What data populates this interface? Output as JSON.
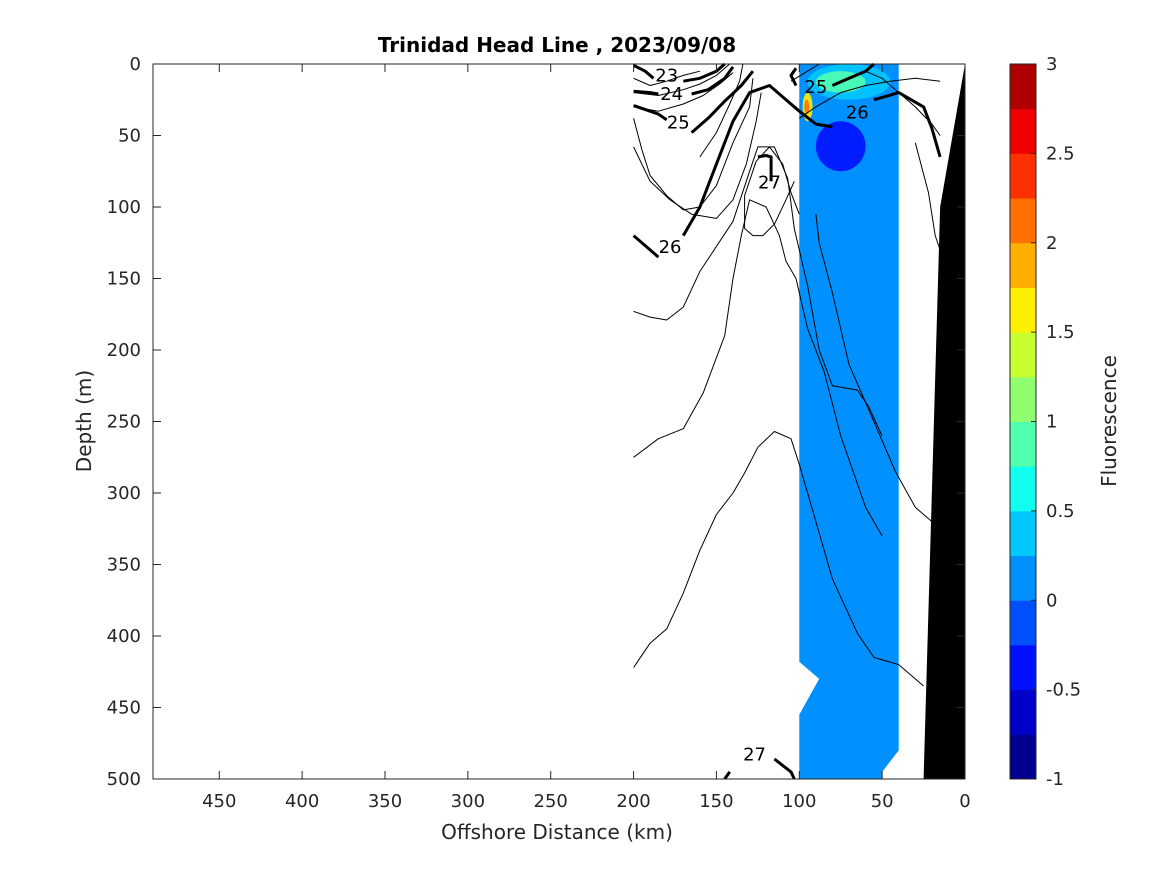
{
  "chart_data": {
    "type": "heatmap",
    "title": "Trinidad Head Line , 2023/09/08",
    "xlabel": "Offshore Distance (km)",
    "ylabel": "Depth (m)",
    "colorbar_label": "Fluorescence",
    "xlim": [
      490,
      0
    ],
    "ylim": [
      500,
      0
    ],
    "x_reversed": true,
    "y_reversed": true,
    "xticks": [
      450,
      400,
      350,
      300,
      250,
      200,
      150,
      100,
      50,
      0
    ],
    "yticks": [
      0,
      50,
      100,
      150,
      200,
      250,
      300,
      350,
      400,
      450,
      500
    ],
    "colorbar": {
      "range": [
        -1,
        3
      ],
      "ticks": [
        -1,
        -0.5,
        0,
        0.5,
        1,
        1.5,
        2,
        2.5,
        3
      ],
      "tick_labels": [
        "-1",
        "-0.5",
        "0",
        "0.5",
        "1",
        "1.5",
        "2",
        "2.5",
        "3"
      ],
      "levels": 16,
      "colors": [
        "#00008f",
        "#0000c8",
        "#0010ff",
        "#0050ff",
        "#0090ff",
        "#00c8ff",
        "#10ffef",
        "#50ffaf",
        "#90ff6f",
        "#c8ff30",
        "#ffef00",
        "#ffaf00",
        "#ff7000",
        "#ff3000",
        "#ef0000",
        "#af0000"
      ]
    },
    "fluorescence_field": {
      "x_range": [
        100,
        40
      ],
      "background_value": 0.1,
      "surface_patches": [
        {
          "x": [
            100,
            40
          ],
          "depth": [
            0,
            60
          ],
          "value": 0.0
        },
        {
          "x": [
            95,
            45
          ],
          "depth": [
            0,
            25
          ],
          "value": 0.4
        },
        {
          "x": [
            90,
            60
          ],
          "depth": [
            5,
            20
          ],
          "value": 0.9
        },
        {
          "x": [
            98,
            92
          ],
          "depth": [
            20,
            40
          ],
          "value": 1.6
        },
        {
          "x": [
            97,
            94
          ],
          "depth": [
            25,
            35
          ],
          "value": 2.2
        },
        {
          "x": [
            90,
            60
          ],
          "depth": [
            40,
            75
          ],
          "value": -0.3
        }
      ]
    },
    "density_contour_labels": [
      {
        "text": "23",
        "x": 180,
        "depth": 8
      },
      {
        "text": "24",
        "x": 177,
        "depth": 21
      },
      {
        "text": "25",
        "x": 173,
        "depth": 41
      },
      {
        "text": "25",
        "x": 90,
        "depth": 16
      },
      {
        "text": "26",
        "x": 65,
        "depth": 34
      },
      {
        "text": "26",
        "x": 178,
        "depth": 128
      },
      {
        "text": "27",
        "x": 118,
        "depth": 83
      },
      {
        "text": "27",
        "x": 127,
        "depth": 483
      }
    ],
    "bathymetry": {
      "color": "#000000",
      "surface_x": 0,
      "bottom_x": 25
    }
  }
}
